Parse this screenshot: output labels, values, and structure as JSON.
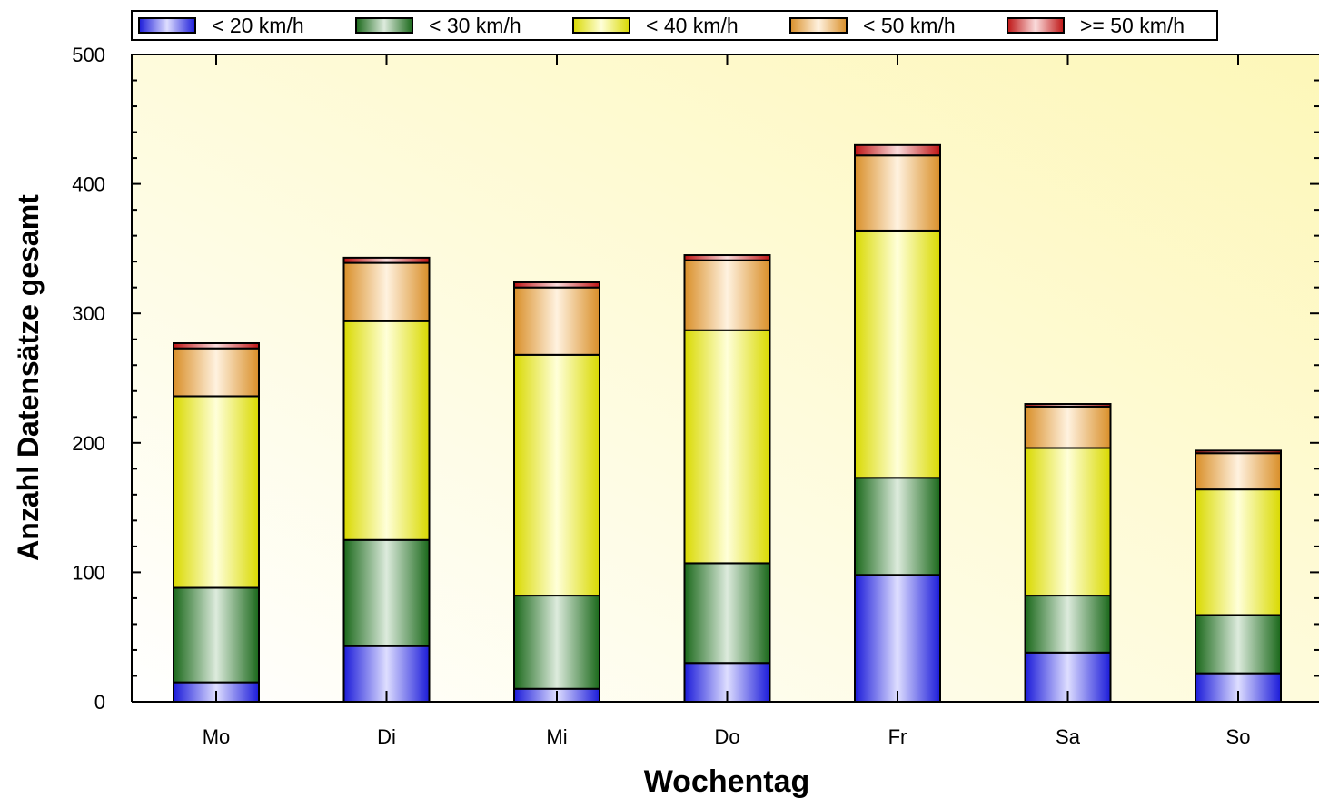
{
  "chart_data": {
    "type": "bar",
    "stacked": true,
    "title": "",
    "xlabel": "Wochentag",
    "ylabel": "Anzahl Datensätze gesamt",
    "categories": [
      "Mo",
      "Di",
      "Mi",
      "Do",
      "Fr",
      "Sa",
      "So"
    ],
    "ylim": [
      0,
      500
    ],
    "yticks": [
      0,
      100,
      200,
      300,
      400,
      500
    ],
    "legend_position": "top",
    "grid": false,
    "series": [
      {
        "name": "< 20 km/h",
        "color": "#2020ff",
        "values": [
          15,
          43,
          10,
          30,
          98,
          38,
          22
        ]
      },
      {
        "name": "< 30 km/h",
        "color": "#1f7a1f",
        "values": [
          73,
          82,
          72,
          77,
          75,
          44,
          45
        ]
      },
      {
        "name": "< 40 km/h",
        "color": "#ffff00",
        "values": [
          148,
          169,
          186,
          180,
          191,
          114,
          97
        ]
      },
      {
        "name": "< 50 km/h",
        "color": "#ffa830",
        "values": [
          37,
          45,
          52,
          54,
          58,
          32,
          28
        ]
      },
      {
        "name": ">= 50 km/h",
        "color": "#e01818",
        "values": [
          4,
          4,
          4,
          4,
          8,
          2,
          2
        ]
      }
    ]
  }
}
